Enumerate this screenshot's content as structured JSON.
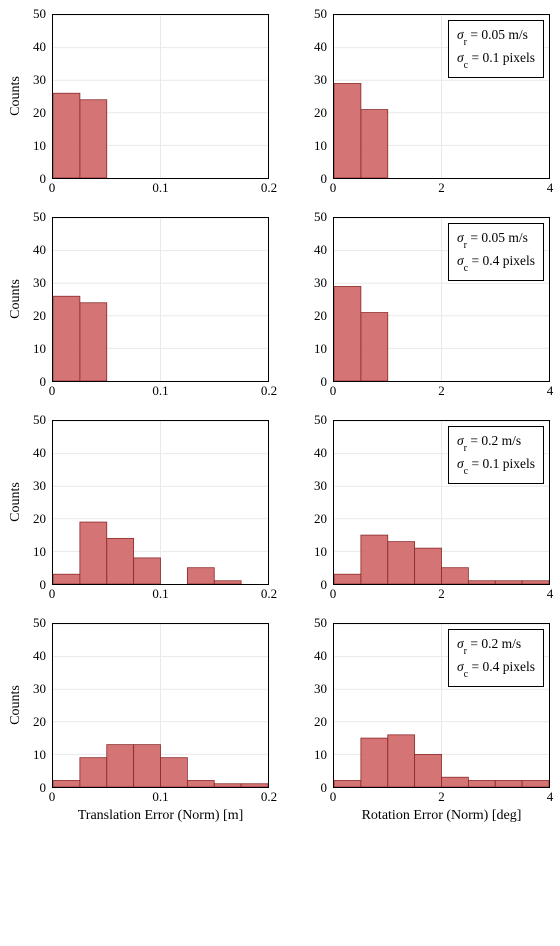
{
  "global": {
    "ylabel": "Counts",
    "y_ticks": [
      0,
      10,
      20,
      30,
      40,
      50
    ],
    "ylim": [
      0,
      50
    ],
    "bar_fill": "#cd5c5c",
    "bar_stroke": "#8a2a2a",
    "grid_color": "#e9e9e9",
    "border_color": "#000000",
    "bg": "#ffffff",
    "font": "Times New Roman",
    "tick_fontsize": 13,
    "label_fontsize": 14
  },
  "columns": {
    "left": {
      "xlim": [
        0,
        0.2
      ],
      "x_ticks": [
        0,
        0.1,
        0.2
      ],
      "x_tick_labels": [
        "0",
        "0.1",
        "0.2"
      ],
      "xlabel": "Translation Error (Norm) [m]",
      "bin_width": 0.025,
      "grid_x": [
        0.1
      ]
    },
    "right": {
      "xlim": [
        0,
        4
      ],
      "x_ticks": [
        0,
        2,
        4
      ],
      "x_tick_labels": [
        "0",
        "2",
        "4"
      ],
      "xlabel": "Rotation Error (Norm) [deg]",
      "bin_width": 0.5,
      "grid_x": [
        2
      ]
    }
  },
  "rows": [
    {
      "legend": {
        "sigma_r": "0.05 m/s",
        "sigma_c": "0.1 pixels"
      },
      "left": {
        "bars": [
          {
            "x": 0,
            "h": 26
          },
          {
            "x": 0.025,
            "h": 24
          }
        ]
      },
      "right": {
        "bars": [
          {
            "x": 0,
            "h": 29
          },
          {
            "x": 0.5,
            "h": 21
          }
        ]
      }
    },
    {
      "legend": {
        "sigma_r": "0.05 m/s",
        "sigma_c": "0.4 pixels"
      },
      "left": {
        "bars": [
          {
            "x": 0,
            "h": 26
          },
          {
            "x": 0.025,
            "h": 24
          }
        ]
      },
      "right": {
        "bars": [
          {
            "x": 0,
            "h": 29
          },
          {
            "x": 0.5,
            "h": 21
          }
        ]
      }
    },
    {
      "legend": {
        "sigma_r": "0.2 m/s",
        "sigma_c": "0.1 pixels"
      },
      "left": {
        "bars": [
          {
            "x": 0,
            "h": 3
          },
          {
            "x": 0.025,
            "h": 19
          },
          {
            "x": 0.05,
            "h": 14
          },
          {
            "x": 0.075,
            "h": 8
          },
          {
            "x": 0.125,
            "h": 5
          },
          {
            "x": 0.15,
            "h": 1
          }
        ]
      },
      "right": {
        "bars": [
          {
            "x": 0,
            "h": 3
          },
          {
            "x": 0.5,
            "h": 15
          },
          {
            "x": 1.0,
            "h": 13
          },
          {
            "x": 1.5,
            "h": 11
          },
          {
            "x": 2.0,
            "h": 5
          },
          {
            "x": 2.5,
            "h": 1
          },
          {
            "x": 3.0,
            "h": 1
          },
          {
            "x": 3.5,
            "h": 1
          }
        ]
      }
    },
    {
      "legend": {
        "sigma_r": "0.2 m/s",
        "sigma_c": "0.4 pixels"
      },
      "left": {
        "bars": [
          {
            "x": 0,
            "h": 2
          },
          {
            "x": 0.025,
            "h": 9
          },
          {
            "x": 0.05,
            "h": 13
          },
          {
            "x": 0.075,
            "h": 13
          },
          {
            "x": 0.1,
            "h": 9
          },
          {
            "x": 0.125,
            "h": 2
          },
          {
            "x": 0.15,
            "h": 1
          },
          {
            "x": 0.175,
            "h": 1
          }
        ]
      },
      "right": {
        "bars": [
          {
            "x": 0,
            "h": 2
          },
          {
            "x": 0.5,
            "h": 15
          },
          {
            "x": 1.0,
            "h": 16
          },
          {
            "x": 1.5,
            "h": 10
          },
          {
            "x": 2.0,
            "h": 3
          },
          {
            "x": 2.5,
            "h": 2
          },
          {
            "x": 3.0,
            "h": 2
          },
          {
            "x": 3.5,
            "h": 2
          }
        ]
      }
    }
  ]
}
